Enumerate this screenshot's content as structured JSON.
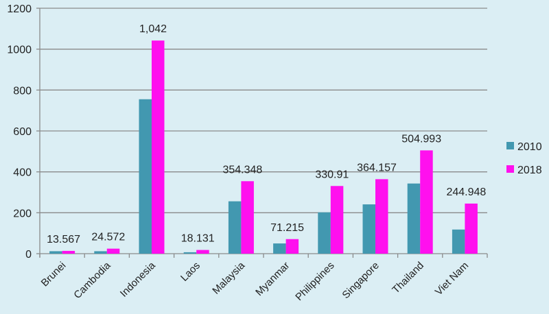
{
  "chart_data": {
    "type": "bar",
    "title": "",
    "xlabel": "",
    "ylabel": "",
    "ylim": [
      0,
      1200
    ],
    "yticks": [
      "0",
      "200",
      "400",
      "600",
      "800",
      "1000",
      "1200"
    ],
    "grid": true,
    "legend_position": "right",
    "categories": [
      "Brunei",
      "Cambodia",
      "Indonesia",
      "Laos",
      "Malaysia",
      "Myanmar",
      "Philippines",
      "Singapore",
      "Thailand",
      "Viet Nam"
    ],
    "series": [
      {
        "name": "2010",
        "color": "#4298b0",
        "values": [
          12,
          12,
          755,
          7,
          256,
          50,
          202,
          241,
          343,
          118
        ]
      },
      {
        "name": "2018",
        "color": "#ff10ee",
        "values": [
          13.567,
          24.572,
          1042,
          18.131,
          354.348,
          71.215,
          330.91,
          364.157,
          504.993,
          244.948
        ]
      }
    ],
    "data_labels": [
      "13.567",
      "24.572",
      "1,042",
      "18.131",
      "354.348",
      "71.215",
      "330.91",
      "364.157",
      "504.993",
      "244.948"
    ]
  }
}
